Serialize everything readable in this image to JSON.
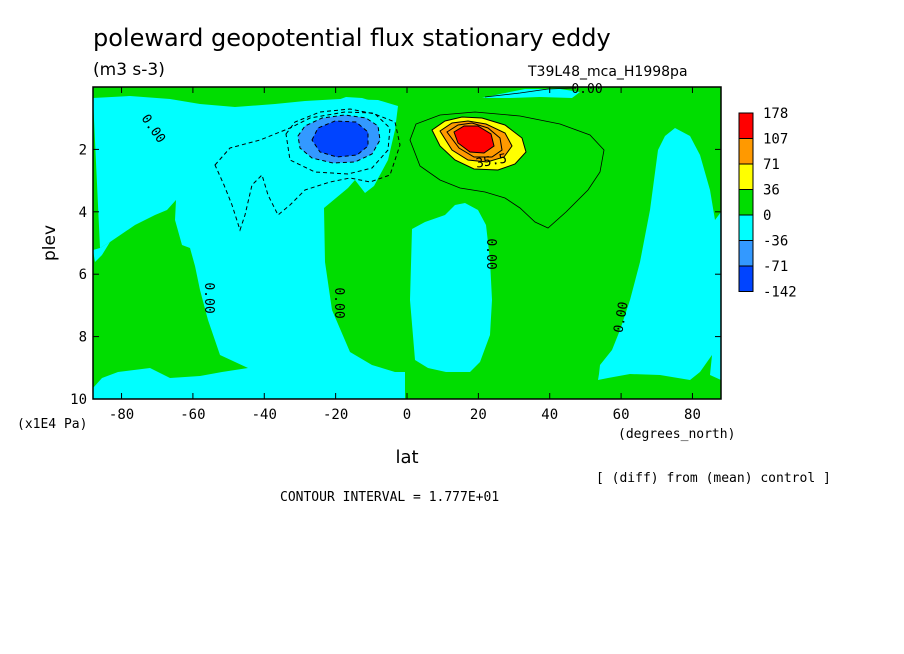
{
  "chart_data": {
    "type": "heatmap",
    "title": "poleward geopotential flux stationary eddy",
    "units": "(m3 s-3)",
    "run_label": "T39L48_mca_H1998pa",
    "xlabel": "lat",
    "ylabel": "plev",
    "x_units": "(degrees_north)",
    "y_units": "(x1E4 Pa)",
    "xlim": [
      -88,
      88
    ],
    "ylim": [
      10,
      0
    ],
    "x_ticks": [
      -80,
      -60,
      -40,
      -20,
      0,
      20,
      40,
      60,
      80
    ],
    "x_tick_labels": [
      "-80",
      "-60",
      "-40",
      "-20",
      "0",
      "20",
      "40",
      "60",
      "80"
    ],
    "y_ticks": [
      2,
      4,
      6,
      8,
      10
    ],
    "y_tick_labels": [
      "2",
      "4",
      "6",
      "8",
      "10"
    ],
    "colorbar": {
      "levels": [
        "178",
        "107",
        "71",
        "36",
        "0",
        "-36",
        "-71",
        "-142"
      ],
      "colors": [
        "#ff0000",
        "#ff9900",
        "#ffff00",
        "#00dd00",
        "#00ffff",
        "#3399ff",
        "#0044ff"
      ]
    },
    "contour_labels": [
      "0.00",
      "0.00",
      "0.00",
      "0.00",
      "0.00",
      "0.00",
      "0.00",
      "35.5"
    ],
    "note": "[ (diff) from (mean) control ]",
    "contour_interval": "CONTOUR INTERVAL = 1.777E+01"
  }
}
